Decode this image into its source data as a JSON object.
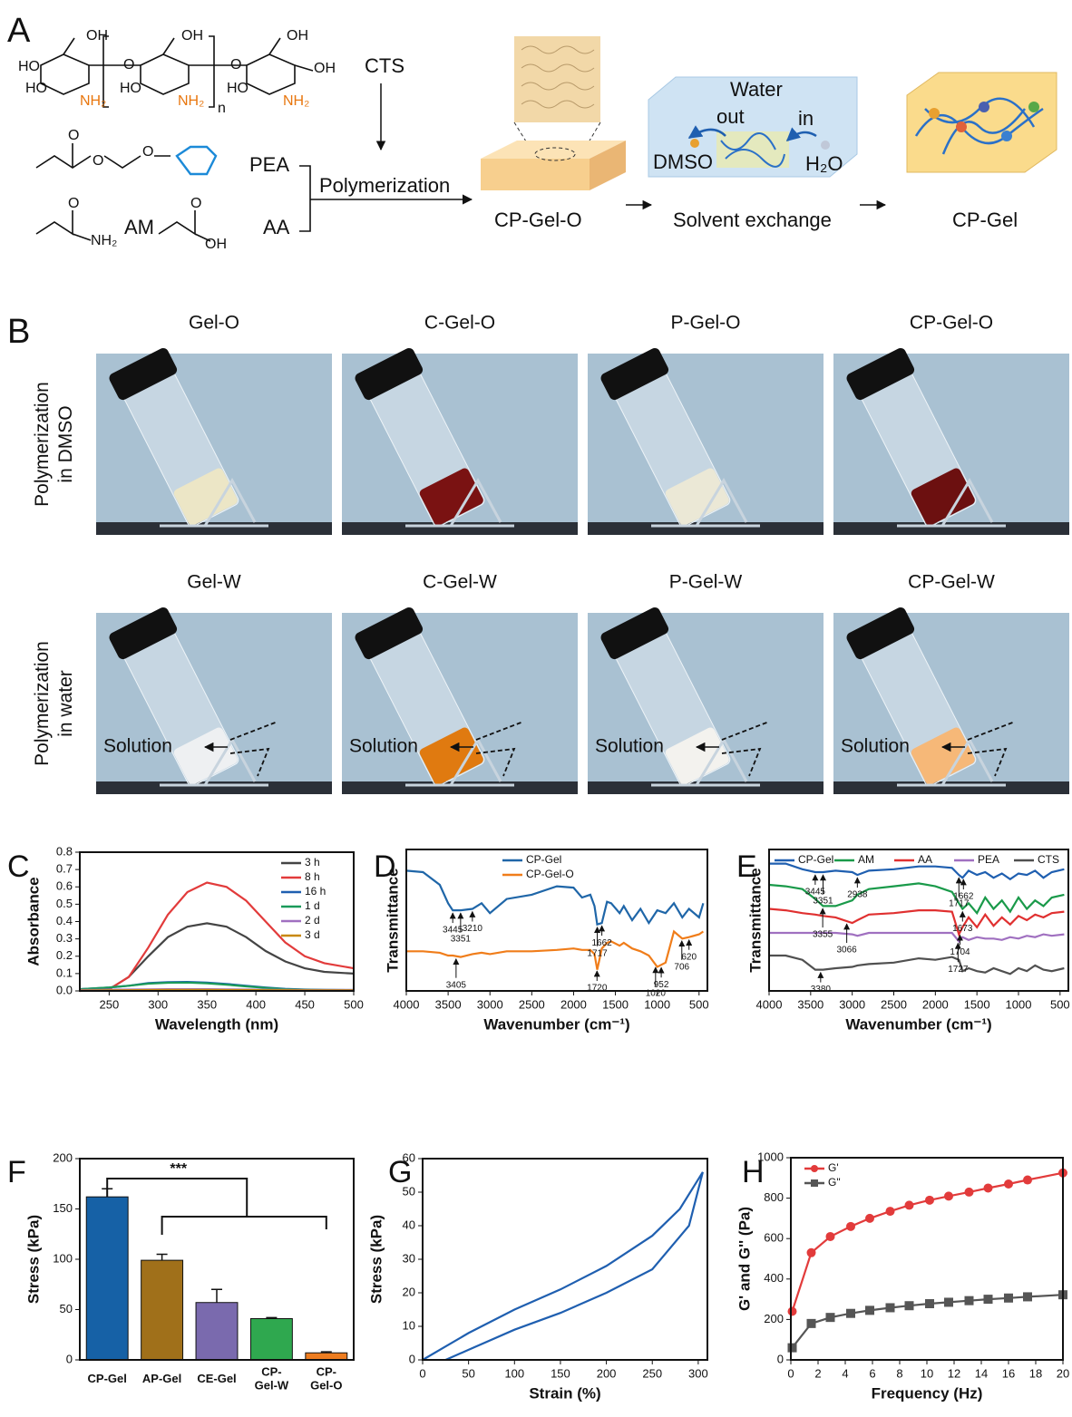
{
  "panel_a": {
    "label": "A",
    "structure_labels": [
      "OH",
      "HO",
      "HO",
      "NH₂",
      "O",
      "OH",
      "HO",
      "NH₂",
      "n",
      "O",
      "OH",
      "HO",
      "NH₂",
      "OH"
    ],
    "monomer_labels": [
      "O",
      "O",
      "O",
      "O",
      "NH₂",
      "O",
      "OH"
    ],
    "cts": "CTS",
    "pea": "PEA",
    "am": "AM",
    "aa": "AA",
    "polymerization": "Polymerization",
    "gel_o": "CP-Gel-O",
    "water": "Water",
    "out": "out",
    "in": "in",
    "dmso": "DMSO",
    "h2o": "H₂O",
    "solvent_exchange": "Solvent exchange",
    "gel": "CP-Gel"
  },
  "panel_b": {
    "label": "B",
    "row_labels": [
      "Polymerization\nin DMSO",
      "Polymerization\nin water"
    ],
    "samples": [
      [
        "Gel-O",
        "C-Gel-O",
        "P-Gel-O",
        "CP-Gel-O"
      ],
      [
        "Gel-W",
        "C-Gel-W",
        "P-Gel-W",
        "CP-Gel-W"
      ]
    ],
    "annotation": "Solution"
  },
  "chart_data": [
    {
      "panel": "C",
      "type": "line",
      "x_label": "Wavelength (nm)",
      "y_label": "Absorbance",
      "xlim": [
        220,
        500
      ],
      "ylim": [
        0,
        0.8
      ],
      "xticks": [
        250,
        300,
        350,
        400,
        450,
        500
      ],
      "yticks": [
        {
          "value": 0,
          "label": "0.0"
        },
        0.1,
        0.2,
        0.3,
        0.4,
        0.5,
        0.6,
        0.7,
        0.8
      ],
      "legend": "upper right",
      "x": [
        220,
        250,
        270,
        290,
        310,
        330,
        350,
        370,
        390,
        410,
        430,
        450,
        470,
        500
      ],
      "series": [
        {
          "name": "3 h",
          "color": "#444444",
          "values": [
            0,
            0.01,
            0.08,
            0.2,
            0.31,
            0.37,
            0.39,
            0.37,
            0.31,
            0.23,
            0.17,
            0.13,
            0.11,
            0.1
          ]
        },
        {
          "name": "8 h",
          "color": "#e23b3b",
          "values": [
            0,
            0.01,
            0.08,
            0.25,
            0.44,
            0.57,
            0.625,
            0.6,
            0.52,
            0.4,
            0.28,
            0.2,
            0.16,
            0.13
          ]
        },
        {
          "name": "16 h",
          "color": "#1f5fb0",
          "values": [
            0.01,
            0.02,
            0.03,
            0.045,
            0.05,
            0.052,
            0.048,
            0.04,
            0.03,
            0.02,
            0.012,
            0.008,
            0.006,
            0.005
          ]
        },
        {
          "name": "1 d",
          "color": "#1a9a5a",
          "values": [
            0.01,
            0.02,
            0.03,
            0.042,
            0.047,
            0.048,
            0.044,
            0.036,
            0.026,
            0.017,
            0.01,
            0.007,
            0.005,
            0.004
          ]
        },
        {
          "name": "2 d",
          "color": "#a070c0",
          "values": [
            0.005,
            0.007,
            0.008,
            0.009,
            0.01,
            0.01,
            0.01,
            0.009,
            0.008,
            0.007,
            0.006,
            0.005,
            0.005,
            0.005
          ]
        },
        {
          "name": "3 d",
          "color": "#c8880c",
          "values": [
            0.002,
            0.003,
            0.004,
            0.005,
            0.006,
            0.006,
            0.006,
            0.005,
            0.005,
            0.004,
            0.004,
            0.003,
            0.003,
            0.003
          ]
        }
      ]
    },
    {
      "panel": "D",
      "type": "line",
      "x_label": "Wavenumber (cm⁻¹)",
      "y_label": "Transmittance",
      "xlim": [
        4000,
        400
      ],
      "ylim": [
        0,
        100
      ],
      "xticks": [
        4000,
        3500,
        3000,
        2500,
        2000,
        1500,
        1000,
        500
      ],
      "legend": "upper center",
      "x": [
        4000,
        3800,
        3600,
        3500,
        3445,
        3351,
        3210,
        3100,
        3000,
        2800,
        2500,
        2200,
        2000,
        1900,
        1800,
        1750,
        1717,
        1662,
        1600,
        1550,
        1450,
        1400,
        1300,
        1200,
        1100,
        1000,
        900,
        800,
        700,
        620,
        500,
        450
      ],
      "series": [
        {
          "name": "CP-Gel",
          "color": "#1f66a8",
          "values": [
            85,
            84,
            75,
            62,
            57,
            57,
            58,
            62,
            55,
            65,
            68,
            74,
            73,
            66,
            68,
            60,
            47,
            48,
            63,
            62,
            55,
            60,
            50,
            58,
            48,
            57,
            55,
            62,
            52,
            58,
            52,
            62
          ]
        },
        {
          "name": "CP-Gel-O",
          "color": "#f07d1a",
          "values": [
            28,
            28,
            27,
            25,
            25,
            24,
            26,
            27,
            26,
            28,
            28,
            29,
            30,
            29,
            29,
            26,
            15,
            30,
            34,
            35,
            32,
            34,
            30,
            28,
            25,
            17,
            20,
            42,
            37,
            38,
            40,
            42
          ]
        }
      ],
      "annotations": [
        {
          "x": 3445,
          "series": 0
        },
        {
          "x": 3351,
          "series": 0
        },
        {
          "x": 3210,
          "series": 0
        },
        {
          "x": 1717,
          "series": 0
        },
        {
          "x": 1662,
          "series": 0
        },
        {
          "x": 3405,
          "series": 1
        },
        {
          "x": 1720,
          "series": 1
        },
        {
          "x": 1020,
          "series": 1
        },
        {
          "x": 952,
          "series": 1
        },
        {
          "x": 706,
          "series": 1
        },
        {
          "x": 620,
          "series": 1
        }
      ]
    },
    {
      "panel": "E",
      "type": "line",
      "x_label": "Wavenumber (cm⁻¹)",
      "y_label": "Transmittance",
      "xlim": [
        4000,
        400
      ],
      "ylim": [
        0,
        100
      ],
      "xticks": [
        4000,
        3500,
        3000,
        2500,
        2000,
        1500,
        1000,
        500
      ],
      "legend": "top",
      "x": [
        4000,
        3800,
        3600,
        3445,
        3351,
        3200,
        3000,
        2938,
        2800,
        2500,
        2200,
        2000,
        1800,
        1717,
        1673,
        1600,
        1500,
        1400,
        1300,
        1200,
        1100,
        1000,
        900,
        800,
        700,
        600,
        450
      ],
      "series": [
        {
          "name": "CP-Gel",
          "color": "#1f5fb0",
          "values": [
            90,
            90,
            86,
            84,
            84,
            85,
            84,
            82,
            85,
            86,
            88,
            88,
            87,
            82,
            80,
            85,
            82,
            84,
            80,
            83,
            79,
            83,
            82,
            85,
            80,
            84,
            86
          ]
        },
        {
          "name": "AM",
          "color": "#1a9a4a",
          "values": [
            75,
            74,
            72,
            65,
            60,
            60,
            64,
            68,
            72,
            74,
            76,
            74,
            70,
            62,
            58,
            62,
            55,
            66,
            58,
            64,
            56,
            66,
            58,
            64,
            60,
            66,
            68
          ]
        },
        {
          "name": "AA",
          "color": "#e03030",
          "values": [
            58,
            57,
            55,
            54,
            53,
            52,
            48,
            50,
            54,
            55,
            57,
            57,
            56,
            40,
            45,
            52,
            45,
            54,
            46,
            52,
            47,
            53,
            50,
            54,
            52,
            55,
            56
          ]
        },
        {
          "name": "PEA",
          "color": "#a070c0",
          "values": [
            41,
            41,
            41,
            41,
            41,
            41,
            40,
            39,
            41,
            41,
            41,
            41,
            41,
            35,
            38,
            36,
            38,
            37,
            37,
            36,
            38,
            37,
            39,
            38,
            40,
            39,
            40
          ]
        },
        {
          "name": "CTS",
          "color": "#505050",
          "values": [
            25,
            25,
            22,
            15,
            15,
            16,
            17,
            18,
            19,
            20,
            23,
            22,
            24,
            22,
            14,
            16,
            14,
            13,
            16,
            14,
            12,
            16,
            14,
            18,
            15,
            14,
            16
          ]
        }
      ],
      "annotations": [
        {
          "x": 3445,
          "series": 0
        },
        {
          "x": 3351,
          "series": 0
        },
        {
          "x": 2938,
          "series": 0
        },
        {
          "x": 1717,
          "series": 0
        },
        {
          "x": 1662,
          "series": 0
        },
        {
          "x": 3355,
          "series": 1
        },
        {
          "x": 1673,
          "series": 1
        },
        {
          "x": 3066,
          "series": 2
        },
        {
          "x": 1704,
          "series": 2
        },
        {
          "x": 1727,
          "series": 3
        },
        {
          "x": 3380,
          "series": 4
        }
      ]
    },
    {
      "panel": "F",
      "type": "bar",
      "y_label": "Stress (kPa)",
      "ylim": [
        0,
        200
      ],
      "yticks": [
        0,
        50,
        100,
        150,
        200
      ],
      "categories": [
        "CP-Gel",
        "AP-Gel",
        "CE-Gel",
        "CP-\nGel-W",
        "CP-\nGel-O"
      ],
      "values": [
        162,
        99,
        57,
        41,
        7
      ],
      "errors": [
        8,
        6,
        13,
        1,
        1
      ],
      "colors": [
        "#1661a6",
        "#a0701a",
        "#7a6aae",
        "#2fa84f",
        "#ee7d20"
      ],
      "significance": "***"
    },
    {
      "panel": "G",
      "type": "line",
      "x_label": "Strain (%)",
      "y_label": "Stress (kPa)",
      "xlim": [
        0,
        310
      ],
      "ylim": [
        0,
        60
      ],
      "xticks": [
        0,
        50,
        100,
        150,
        200,
        250,
        300
      ],
      "yticks": [
        0,
        10,
        20,
        30,
        40,
        50,
        60
      ],
      "x": [
        0,
        25,
        50,
        100,
        150,
        200,
        250,
        280,
        305,
        290,
        250,
        200,
        150,
        100,
        50,
        25
      ],
      "series": [
        {
          "color": "#1f5fb0",
          "values": [
            0,
            4,
            8,
            15,
            21,
            28,
            37,
            45,
            56,
            40,
            27,
            20,
            14,
            9,
            3,
            0
          ]
        }
      ]
    },
    {
      "panel": "H",
      "type": "line",
      "x_label": "Frequency (Hz)",
      "y_label": "G' and G'' (Pa)",
      "xlim": [
        0,
        20
      ],
      "ylim": [
        0,
        1000
      ],
      "xticks": [
        0,
        2,
        4,
        6,
        8,
        10,
        12,
        14,
        16,
        18,
        20
      ],
      "yticks": [
        0,
        200,
        400,
        600,
        800,
        1000
      ],
      "legend": "upper left",
      "x": [
        0.1,
        1.5,
        2.9,
        4.4,
        5.8,
        7.3,
        8.7,
        10.2,
        11.6,
        13.1,
        14.5,
        16,
        17.4,
        20
      ],
      "series": [
        {
          "name": "G'",
          "color": "#e23b3b",
          "marker": "circle",
          "values": [
            240,
            530,
            610,
            660,
            700,
            735,
            765,
            790,
            810,
            830,
            850,
            870,
            890,
            925
          ]
        },
        {
          "name": "G\"",
          "color": "#555555",
          "marker": "square",
          "values": [
            60,
            180,
            210,
            230,
            245,
            258,
            268,
            278,
            285,
            293,
            300,
            306,
            312,
            322
          ]
        }
      ]
    }
  ]
}
